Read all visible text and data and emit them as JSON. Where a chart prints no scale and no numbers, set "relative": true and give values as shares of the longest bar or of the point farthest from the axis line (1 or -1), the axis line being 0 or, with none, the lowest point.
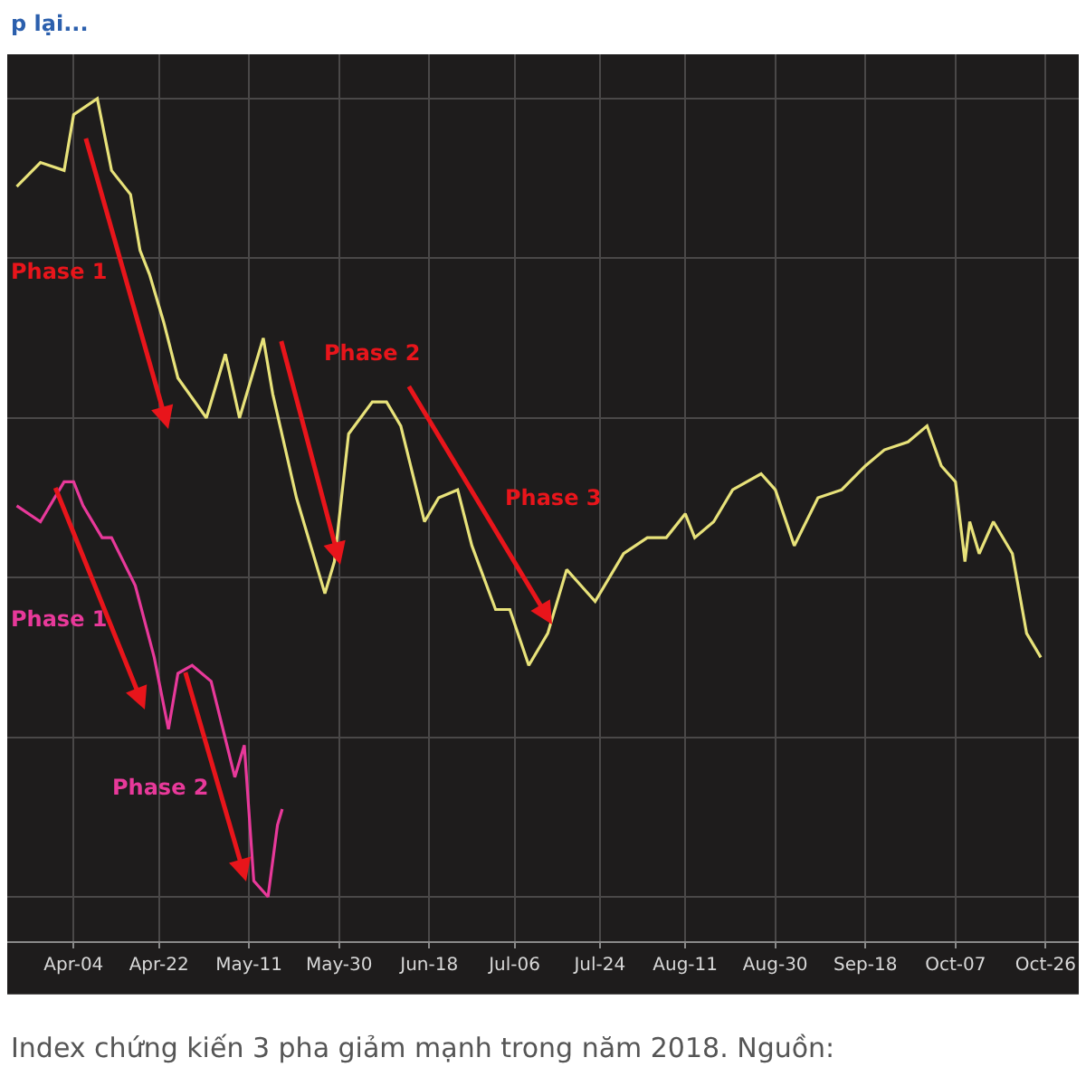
{
  "chart_data": {
    "type": "line",
    "relative": true,
    "grid": true,
    "tick_labels": "x",
    "marker": "none",
    "line_style": "solid",
    "xlim": [
      "2018-03-21",
      "2018-11-02"
    ],
    "xticks": [
      {
        "value": "2018-04-04",
        "label": "Apr-04"
      },
      {
        "value": "2018-04-22",
        "label": "Apr-22"
      },
      {
        "value": "2018-05-11",
        "label": "May-11"
      },
      {
        "value": "2018-05-30",
        "label": "May-30"
      },
      {
        "value": "2018-06-18",
        "label": "Jun-18"
      },
      {
        "value": "2018-07-06",
        "label": "Jul-06"
      },
      {
        "value": "2018-07-24",
        "label": "Jul-24"
      },
      {
        "value": "2018-08-11",
        "label": "Aug-11"
      },
      {
        "value": "2018-08-30",
        "label": "Aug-30"
      },
      {
        "value": "2018-09-18",
        "label": "Sep-18"
      },
      {
        "value": "2018-10-07",
        "label": "Oct-07"
      },
      {
        "value": "2018-10-26",
        "label": "Oct-26"
      }
    ],
    "series": [
      {
        "color": "#e8e27a",
        "x": [
          "2018-03-23",
          "2018-03-28",
          "2018-04-02",
          "2018-04-04",
          "2018-04-09",
          "2018-04-11",
          "2018-04-12",
          "2018-04-16",
          "2018-04-18",
          "2018-04-20",
          "2018-04-23",
          "2018-04-26",
          "2018-05-02",
          "2018-05-06",
          "2018-05-09",
          "2018-05-14",
          "2018-05-16",
          "2018-05-21",
          "2018-05-27",
          "2018-05-29",
          "2018-06-01",
          "2018-06-06",
          "2018-06-09",
          "2018-06-12",
          "2018-06-17",
          "2018-06-20",
          "2018-06-24",
          "2018-06-27",
          "2018-07-02",
          "2018-07-05",
          "2018-07-09",
          "2018-07-13",
          "2018-07-17",
          "2018-07-20",
          "2018-07-23",
          "2018-07-29",
          "2018-08-03",
          "2018-08-07",
          "2018-08-11",
          "2018-08-13",
          "2018-08-17",
          "2018-08-21",
          "2018-08-27",
          "2018-08-30",
          "2018-09-03",
          "2018-09-08",
          "2018-09-13",
          "2018-09-18",
          "2018-09-22",
          "2018-09-27",
          "2018-10-01",
          "2018-10-04",
          "2018-10-07",
          "2018-10-09",
          "2018-10-10",
          "2018-10-12",
          "2018-10-15",
          "2018-10-19",
          "2018-10-22",
          "2018-10-25"
        ],
        "values": [
          0.89,
          0.92,
          0.91,
          0.98,
          1.0,
          0.94,
          0.91,
          0.88,
          0.81,
          0.78,
          0.72,
          0.65,
          0.6,
          0.68,
          0.6,
          0.7,
          0.63,
          0.5,
          0.38,
          0.42,
          0.58,
          0.62,
          0.62,
          0.59,
          0.47,
          0.5,
          0.51,
          0.44,
          0.36,
          0.36,
          0.29,
          0.33,
          0.41,
          0.39,
          0.37,
          0.43,
          0.45,
          0.45,
          0.48,
          0.45,
          0.47,
          0.51,
          0.53,
          0.51,
          0.44,
          0.5,
          0.51,
          0.54,
          0.56,
          0.57,
          0.59,
          0.54,
          0.52,
          0.42,
          0.47,
          0.43,
          0.47,
          0.43,
          0.33,
          0.3
        ]
      },
      {
        "color": "#e8399a",
        "x": [
          "2018-03-23",
          "2018-03-28",
          "2018-04-02",
          "2018-04-04",
          "2018-04-06",
          "2018-04-10",
          "2018-04-12",
          "2018-04-17",
          "2018-04-21",
          "2018-04-24",
          "2018-04-26",
          "2018-04-29",
          "2018-05-03",
          "2018-05-08",
          "2018-05-10",
          "2018-05-12",
          "2018-05-15",
          "2018-05-17",
          "2018-05-18"
        ],
        "values": [
          0.49,
          0.47,
          0.52,
          0.52,
          0.49,
          0.45,
          0.45,
          0.39,
          0.3,
          0.21,
          0.28,
          0.29,
          0.27,
          0.15,
          0.19,
          0.02,
          0.0,
          0.09,
          0.11
        ]
      }
    ],
    "annotations": [
      "Phase 1",
      "Phase 2",
      "Phase 3",
      "Phase 1",
      "Phase 2",
      "p lại...",
      "Index chứng kiến 3 pha giảm mạnh trong năm 2018. Nguồn:"
    ]
  }
}
